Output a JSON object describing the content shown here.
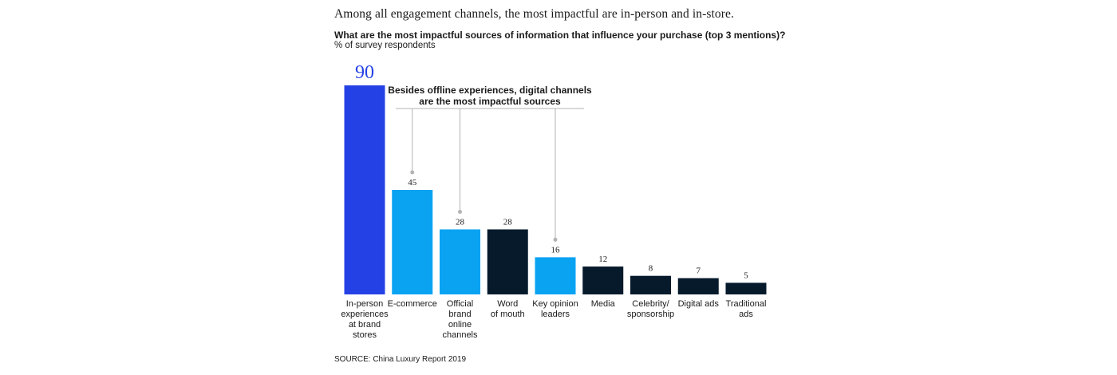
{
  "headline": "Among all engagement channels, the most impactful are in-person and in-store.",
  "question": "What are the most impactful sources of information that influence your purchase (top 3 mentions)?",
  "unit": "% of survey respondents",
  "source": "SOURCE: China Luxury Report 2019",
  "callout": {
    "line1": "Besides offline experiences, digital channels",
    "line2": "are the most impactful sources"
  },
  "colors": {
    "highlight": "#2441e6",
    "digital": "#0aa3f2",
    "other": "#061a2c",
    "annotation_line": "#b3b3b3"
  },
  "chart_data": {
    "type": "bar",
    "categories": [
      [
        "In-person",
        "experiences",
        "at brand",
        "stores"
      ],
      [
        "E-commerce"
      ],
      [
        "Official",
        "brand",
        "online",
        "channels"
      ],
      [
        "Word",
        "of mouth"
      ],
      [
        "Key opinion",
        "leaders"
      ],
      [
        "Media"
      ],
      [
        "Celebrity/",
        "sponsorship"
      ],
      [
        "Digital ads"
      ],
      [
        "Traditional",
        "ads"
      ]
    ],
    "values": [
      90,
      45,
      28,
      28,
      16,
      12,
      8,
      7,
      5
    ],
    "bar_colors": [
      "highlight",
      "digital",
      "digital",
      "other",
      "digital",
      "other",
      "other",
      "other",
      "other"
    ],
    "callout_targets": [
      1,
      2,
      4
    ],
    "ylim": [
      0,
      90
    ],
    "grid": false,
    "legend": "none"
  }
}
